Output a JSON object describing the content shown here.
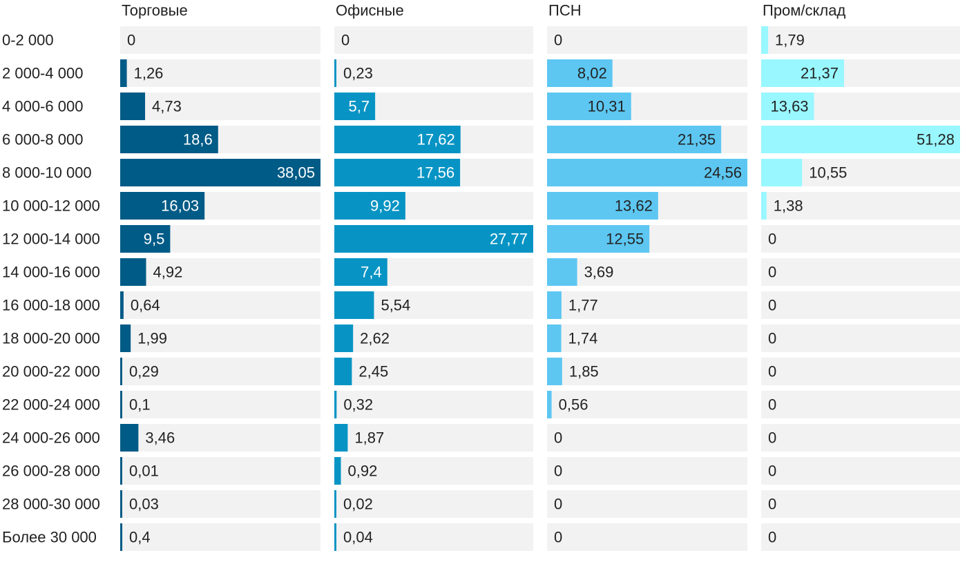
{
  "chart_data": {
    "type": "bar",
    "categories": [
      "0-2 000",
      "2 000-4 000",
      "4 000-6 000",
      "6 000-8 000",
      "8 000-10 000",
      "10 000-12 000",
      "12 000-14 000",
      "14 000-16 000",
      "16 000-18 000",
      "18 000-20 000",
      "20 000-22 000",
      "22 000-24 000",
      "24 000-26 000",
      "26 000-28 000",
      "28 000-30 000",
      "Более 30 000"
    ],
    "series": [
      {
        "name": "Торговые",
        "color": "#005b86",
        "label_color_inside": "#ffffff",
        "values": [
          0,
          1.26,
          4.73,
          18.6,
          38.05,
          16.03,
          9.5,
          4.92,
          0.64,
          1.99,
          0.29,
          0.1,
          3.46,
          0.01,
          0.03,
          0.4
        ],
        "labels": [
          "0",
          "1,26",
          "4,73",
          "18,6",
          "38,05",
          "16,03",
          "9,5",
          "4,92",
          "0,64",
          "1,99",
          "0,29",
          "0,1",
          "3,46",
          "0,01",
          "0,03",
          "0,4"
        ]
      },
      {
        "name": "Офисные",
        "color": "#0794c4",
        "label_color_inside": "#ffffff",
        "values": [
          0,
          0.23,
          5.7,
          17.62,
          17.56,
          9.92,
          27.77,
          7.4,
          5.54,
          2.62,
          2.45,
          0.32,
          1.87,
          0.92,
          0.02,
          0.04
        ],
        "labels": [
          "0",
          "0,23",
          "5,7",
          "17,62",
          "17,56",
          "9,92",
          "27,77",
          "7,4",
          "5,54",
          "2,62",
          "2,45",
          "0,32",
          "1,87",
          "0,92",
          "0,02",
          "0,04"
        ]
      },
      {
        "name": "ПСН",
        "color": "#5dc7f2",
        "label_color_inside": "#222222",
        "values": [
          0,
          8.02,
          10.31,
          21.35,
          24.56,
          13.62,
          12.55,
          3.69,
          1.77,
          1.74,
          1.85,
          0.56,
          0,
          0,
          0,
          0
        ],
        "labels": [
          "0",
          "8,02",
          "10,31",
          "21,35",
          "24,56",
          "13,62",
          "12,55",
          "3,69",
          "1,77",
          "1,74",
          "1,85",
          "0,56",
          "0",
          "0",
          "0",
          "0"
        ]
      },
      {
        "name": "Пром/склад",
        "color": "#99f7ff",
        "label_color_inside": "#222222",
        "values": [
          1.79,
          21.37,
          13.63,
          51.28,
          10.55,
          1.38,
          0,
          0,
          0,
          0,
          0,
          0,
          0,
          0,
          0,
          0
        ],
        "labels": [
          "1,79",
          "21,37",
          "13,63",
          "51,28",
          "10,55",
          "1,38",
          "0",
          "0",
          "0",
          "0",
          "0",
          "0",
          "0",
          "0",
          "0",
          "0"
        ]
      }
    ],
    "track_color": "#f2f2f2",
    "grid": false
  }
}
